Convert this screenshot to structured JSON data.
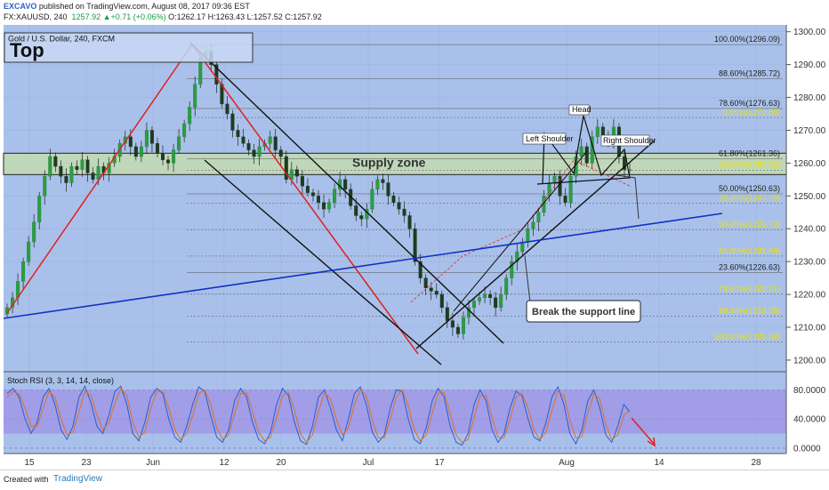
{
  "header": {
    "publisher": "EXCAVO",
    "published_text": "published on TradingView.com, August 08, 2017 09:36 EST",
    "symbol": "FX:XAUUSD, 240",
    "last": "1257.92",
    "change": "+0.71 (+0.06%)",
    "ohlc": "O:1262.17  H:1263.43  L:1257.52  C:1257.92"
  },
  "footer": {
    "created_with": "Created with",
    "brand": "TradingView"
  },
  "colors": {
    "background": "#a9c1ea",
    "supply_zone": "#c6dcae",
    "rsi_band": "#9f90e6",
    "channel": "#111111",
    "zigzag": "#e02020",
    "trendline": "#1030c8",
    "fib_yellow": "#e8e010"
  },
  "chart_data": [
    {
      "type": "candlestick",
      "title": "Gold / U.S. Dollar, 240, FXCM",
      "label_top": "Top",
      "x_ticks": [
        "15",
        "23",
        "Jun",
        "12",
        "20",
        "Jul",
        "17",
        "Aug",
        "14",
        "28"
      ],
      "y_ticks": [
        1300,
        1290,
        1280,
        1270,
        1260,
        1250,
        1240,
        1230,
        1220,
        1210,
        1200
      ],
      "y_tick_labels": [
        "1300.00",
        "1290.00",
        "1280.00",
        "1270.00",
        "1260.00",
        "1250.00",
        "1240.00",
        "1230.00",
        "1220.00",
        "1210.00",
        "1200.00"
      ],
      "ylim": [
        1197,
        1301
      ],
      "approx_closes": [
        1216,
        1219,
        1224,
        1230,
        1236,
        1242,
        1250,
        1256,
        1262,
        1259,
        1256,
        1254,
        1259,
        1258,
        1261,
        1257,
        1255,
        1259,
        1257,
        1260,
        1262,
        1266,
        1268,
        1265,
        1262,
        1265,
        1270,
        1266,
        1263,
        1261,
        1260,
        1264,
        1268,
        1272,
        1277,
        1284,
        1292,
        1294,
        1290,
        1284,
        1278,
        1275,
        1270,
        1268,
        1266,
        1264,
        1262,
        1265,
        1266,
        1268,
        1264,
        1262,
        1255,
        1258,
        1256,
        1253,
        1251,
        1250,
        1248,
        1246,
        1248,
        1252,
        1255,
        1252,
        1247,
        1244,
        1243,
        1246,
        1252,
        1255,
        1254,
        1250,
        1248,
        1246,
        1244,
        1240,
        1230,
        1225,
        1222,
        1221,
        1220,
        1216,
        1212,
        1210,
        1208,
        1213,
        1216,
        1218,
        1219,
        1220,
        1219,
        1216,
        1220,
        1225,
        1230,
        1233,
        1236,
        1240,
        1242,
        1245,
        1250,
        1254,
        1256,
        1250,
        1248,
        1256,
        1262,
        1265,
        1260,
        1268,
        1271,
        1268,
        1266,
        1271,
        1262,
        1258,
        1258
      ],
      "supply_zone": {
        "label": "Supply zone",
        "from": 1256.5,
        "to": 1263
      },
      "fib_upper": [
        {
          "label": "100.00%(1296.09)",
          "value": 1296.09
        },
        {
          "label": "88.60%(1285.72)",
          "value": 1285.72
        },
        {
          "label": "78.60%(1276.63)",
          "value": 1276.63
        },
        {
          "label": "61.80%(1261.36)",
          "value": 1261.36
        },
        {
          "label": "50.00%(1250.63)",
          "value": 1250.63
        },
        {
          "label": "23.60%(1226.63)",
          "value": 1226.63
        }
      ],
      "fib_lower": [
        {
          "label": "0.00%(1273.88)",
          "value": 1273.88
        },
        {
          "label": "23.60%(1257.76)",
          "value": 1257.76
        },
        {
          "label": "38.20%(1247.79)",
          "value": 1247.79
        },
        {
          "label": "50.00%(1239.73)",
          "value": 1239.73
        },
        {
          "label": "61.80%(1231.68)",
          "value": 1231.68
        },
        {
          "label": "78.60%(1220.21)",
          "value": 1220.21
        },
        {
          "label": "88.60%(1213.38)",
          "value": 1213.38
        },
        {
          "label": "100.00%(1205.58)",
          "value": 1205.58
        }
      ],
      "pattern_labels": {
        "left_shoulder": "Left Shoulder",
        "head": "Head",
        "right_shoulder": "Right Shoulder"
      },
      "callout": "Break the support line"
    },
    {
      "type": "line",
      "title": "Stoch RSI (3, 3, 14, 14, close)",
      "y_ticks": [
        80,
        40,
        0
      ],
      "y_tick_labels": [
        "80.0000",
        "40.0000",
        "0.0000"
      ],
      "ylim": [
        -5,
        100
      ],
      "band": [
        20,
        80
      ],
      "series": [
        {
          "values": [
            75,
            82,
            70,
            40,
            20,
            35,
            70,
            82,
            60,
            25,
            12,
            30,
            70,
            85,
            62,
            30,
            20,
            45,
            78,
            85,
            60,
            20,
            10,
            35,
            70,
            82,
            75,
            40,
            15,
            8,
            30,
            60,
            84,
            78,
            45,
            15,
            8,
            25,
            65,
            82,
            70,
            35,
            12,
            6,
            22,
            60,
            82,
            72,
            35,
            10,
            5,
            30,
            70,
            80,
            55,
            25,
            10,
            40,
            75,
            84,
            60,
            22,
            8,
            18,
            55,
            80,
            78,
            40,
            12,
            6,
            28,
            65,
            82,
            70,
            30,
            8,
            4,
            20,
            60,
            80,
            65,
            25,
            8,
            20,
            55,
            78,
            72,
            40,
            15,
            10,
            35,
            70,
            84,
            60,
            20,
            6,
            25,
            65,
            80,
            55,
            18,
            8,
            30,
            60,
            50
          ]
        },
        {
          "values": [
            70,
            78,
            74,
            55,
            30,
            30,
            55,
            78,
            70,
            40,
            18,
            22,
            50,
            78,
            72,
            45,
            25,
            35,
            62,
            82,
            72,
            35,
            15,
            22,
            55,
            78,
            78,
            55,
            25,
            12,
            20,
            45,
            75,
            80,
            60,
            28,
            12,
            18,
            48,
            75,
            76,
            50,
            22,
            10,
            15,
            42,
            72,
            76,
            52,
            20,
            8,
            18,
            50,
            76,
            68,
            40,
            18,
            28,
            60,
            80,
            72,
            38,
            14,
            14,
            40,
            70,
            80,
            58,
            25,
            10,
            18,
            48,
            76,
            76,
            48,
            18,
            8,
            12,
            42,
            72,
            72,
            42,
            15,
            14,
            40,
            70,
            75,
            55,
            25,
            12,
            22,
            52,
            78,
            72,
            38,
            14,
            16,
            48,
            74,
            68,
            32,
            12,
            18,
            45,
            52
          ]
        }
      ]
    }
  ]
}
